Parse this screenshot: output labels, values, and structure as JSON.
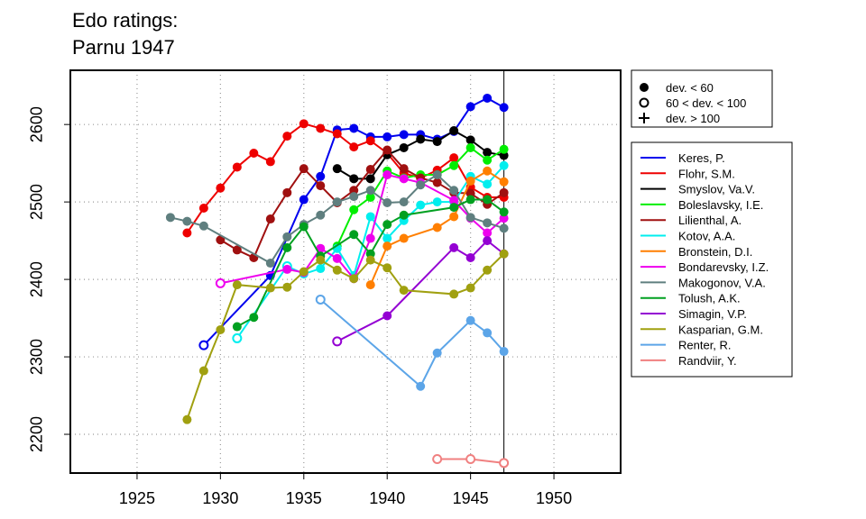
{
  "chart_data": {
    "type": "line",
    "title": [
      "Edo ratings:",
      "Parnu 1947"
    ],
    "xlabel": "",
    "ylabel": "",
    "xlim": [
      1921,
      1954
    ],
    "ylim": [
      2150,
      2670
    ],
    "xticks": [
      1925,
      1930,
      1935,
      1940,
      1945,
      1950
    ],
    "yticks": [
      2200,
      2300,
      2400,
      2500,
      2600
    ],
    "grid": "dotted",
    "vline_x": 1947,
    "legend_markers": {
      "position": "top-right",
      "entries": [
        "dev. < 60",
        "60 < dev. < 100",
        "dev. > 100"
      ]
    },
    "legend_position": "right",
    "series": [
      {
        "name": "Keres, P.",
        "color": "#0000ee",
        "points": [
          [
            1929,
            2315,
            "open"
          ],
          [
            1933,
            2405,
            "filled"
          ],
          [
            1935,
            2503,
            "filled"
          ],
          [
            1936,
            2533,
            "filled"
          ],
          [
            1937,
            2593,
            "filled"
          ],
          [
            1938,
            2595,
            "filled"
          ],
          [
            1939,
            2584,
            "filled"
          ],
          [
            1940,
            2584,
            "filled"
          ],
          [
            1941,
            2587,
            "filled"
          ],
          [
            1942,
            2587,
            "filled"
          ],
          [
            1943,
            2581,
            "filled"
          ],
          [
            1944,
            2591,
            "filled"
          ],
          [
            1945,
            2623,
            "filled"
          ],
          [
            1946,
            2634,
            "filled"
          ],
          [
            1947,
            2622,
            "filled"
          ]
        ]
      },
      {
        "name": "Flohr, S.M.",
        "color": "#ee0000",
        "points": [
          [
            1928,
            2460,
            "filled"
          ],
          [
            1929,
            2492,
            "filled"
          ],
          [
            1930,
            2518,
            "filled"
          ],
          [
            1931,
            2545,
            "filled"
          ],
          [
            1932,
            2563,
            "filled"
          ],
          [
            1933,
            2552,
            "filled"
          ],
          [
            1934,
            2585,
            "filled"
          ],
          [
            1935,
            2601,
            "filled"
          ],
          [
            1936,
            2595,
            "filled"
          ],
          [
            1937,
            2588,
            "filled"
          ],
          [
            1938,
            2571,
            "filled"
          ],
          [
            1939,
            2579,
            "filled"
          ],
          [
            1940,
            2563,
            "filled"
          ],
          [
            1941,
            2537,
            "filled"
          ],
          [
            1942,
            2531,
            "filled"
          ],
          [
            1943,
            2541,
            "filled"
          ],
          [
            1944,
            2557,
            "filled"
          ],
          [
            1945,
            2519,
            "filled"
          ],
          [
            1946,
            2506,
            "filled"
          ],
          [
            1947,
            2506,
            "filled"
          ]
        ]
      },
      {
        "name": "Smyslov, Va.V.",
        "color": "#000000",
        "points": [
          [
            1937,
            2543,
            "filled"
          ],
          [
            1938,
            2530,
            "filled"
          ],
          [
            1939,
            2530,
            "filled"
          ],
          [
            1940,
            2561,
            "filled"
          ],
          [
            1941,
            2570,
            "filled"
          ],
          [
            1942,
            2581,
            "filled"
          ],
          [
            1943,
            2578,
            "filled"
          ],
          [
            1944,
            2592,
            "filled"
          ],
          [
            1945,
            2580,
            "filled"
          ],
          [
            1946,
            2564,
            "filled"
          ],
          [
            1947,
            2560,
            "filled"
          ]
        ]
      },
      {
        "name": "Boleslavsky, I.E.",
        "color": "#00ee00",
        "points": [
          [
            1937,
            2443,
            "filled"
          ],
          [
            1938,
            2490,
            "filled"
          ],
          [
            1939,
            2506,
            "filled"
          ],
          [
            1940,
            2540,
            "filled"
          ],
          [
            1941,
            2531,
            "filled"
          ],
          [
            1942,
            2535,
            "filled"
          ],
          [
            1943,
            2535,
            "filled"
          ],
          [
            1944,
            2547,
            "filled"
          ],
          [
            1945,
            2570,
            "filled"
          ],
          [
            1946,
            2554,
            "filled"
          ],
          [
            1947,
            2568,
            "filled"
          ]
        ]
      },
      {
        "name": "Lilienthal, A.",
        "color": "#a01010",
        "points": [
          [
            1930,
            2451,
            "filled"
          ],
          [
            1931,
            2438,
            "filled"
          ],
          [
            1932,
            2428,
            "filled"
          ],
          [
            1933,
            2478,
            "filled"
          ],
          [
            1934,
            2512,
            "filled"
          ],
          [
            1935,
            2543,
            "filled"
          ],
          [
            1936,
            2521,
            "filled"
          ],
          [
            1937,
            2499,
            "filled"
          ],
          [
            1938,
            2515,
            "filled"
          ],
          [
            1939,
            2542,
            "filled"
          ],
          [
            1940,
            2567,
            "filled"
          ],
          [
            1941,
            2543,
            "filled"
          ],
          [
            1942,
            2531,
            "filled"
          ],
          [
            1943,
            2525,
            "filled"
          ],
          [
            1944,
            2512,
            "filled"
          ],
          [
            1945,
            2511,
            "filled"
          ],
          [
            1946,
            2497,
            "filled"
          ],
          [
            1947,
            2512,
            "filled"
          ]
        ]
      },
      {
        "name": "Kotov, A.A.",
        "color": "#00eeee",
        "points": [
          [
            1931,
            2324,
            "open"
          ],
          [
            1934,
            2417,
            "open"
          ],
          [
            1935,
            2407,
            "filled"
          ],
          [
            1936,
            2414,
            "filled"
          ],
          [
            1937,
            2440,
            "filled"
          ],
          [
            1938,
            2405,
            "filled"
          ],
          [
            1939,
            2481,
            "filled"
          ],
          [
            1940,
            2453,
            "filled"
          ],
          [
            1941,
            2476,
            "filled"
          ],
          [
            1942,
            2496,
            "filled"
          ],
          [
            1943,
            2500,
            "filled"
          ],
          [
            1944,
            2500,
            "filled"
          ],
          [
            1945,
            2533,
            "filled"
          ],
          [
            1946,
            2523,
            "filled"
          ],
          [
            1947,
            2547,
            "filled"
          ]
        ]
      },
      {
        "name": "Bronstein, D.I.",
        "color": "#ff7f00",
        "points": [
          [
            1939,
            2393,
            "filled"
          ],
          [
            1940,
            2443,
            "filled"
          ],
          [
            1941,
            2453,
            "filled"
          ],
          [
            1943,
            2467,
            "filled"
          ],
          [
            1944,
            2481,
            "filled"
          ],
          [
            1945,
            2527,
            "filled"
          ],
          [
            1946,
            2540,
            "filled"
          ],
          [
            1947,
            2526,
            "filled"
          ]
        ]
      },
      {
        "name": "Bondarevsky, I.Z.",
        "color": "#ee00ee",
        "points": [
          [
            1930,
            2395,
            "open"
          ],
          [
            1934,
            2413,
            "filled"
          ],
          [
            1935,
            2409,
            "filled"
          ],
          [
            1936,
            2440,
            "filled"
          ],
          [
            1937,
            2427,
            "filled"
          ],
          [
            1938,
            2401,
            "filled"
          ],
          [
            1939,
            2453,
            "filled"
          ],
          [
            1940,
            2535,
            "filled"
          ],
          [
            1941,
            2530,
            "filled"
          ],
          [
            1942,
            2525,
            "filled"
          ],
          [
            1944,
            2502,
            "filled"
          ],
          [
            1945,
            2479,
            "filled"
          ],
          [
            1946,
            2460,
            "filled"
          ],
          [
            1947,
            2479,
            "filled"
          ]
        ]
      },
      {
        "name": "Makogonov, V.A.",
        "color": "#5f7f7f",
        "points": [
          [
            1927,
            2480,
            "filled"
          ],
          [
            1928,
            2475,
            "filled"
          ],
          [
            1929,
            2469,
            "filled"
          ],
          [
            1933,
            2421,
            "filled"
          ],
          [
            1934,
            2455,
            "filled"
          ],
          [
            1935,
            2471,
            "filled"
          ],
          [
            1936,
            2483,
            "filled"
          ],
          [
            1937,
            2500,
            "filled"
          ],
          [
            1938,
            2507,
            "filled"
          ],
          [
            1939,
            2515,
            "filled"
          ],
          [
            1940,
            2499,
            "filled"
          ],
          [
            1941,
            2500,
            "filled"
          ],
          [
            1942,
            2522,
            "filled"
          ],
          [
            1943,
            2535,
            "filled"
          ],
          [
            1944,
            2515,
            "filled"
          ],
          [
            1945,
            2480,
            "filled"
          ],
          [
            1946,
            2473,
            "filled"
          ],
          [
            1947,
            2466,
            "filled"
          ]
        ]
      },
      {
        "name": "Tolush, A.K.",
        "color": "#00a020",
        "points": [
          [
            1931,
            2339,
            "filled"
          ],
          [
            1932,
            2351,
            "filled"
          ],
          [
            1934,
            2441,
            "filled"
          ],
          [
            1935,
            2468,
            "filled"
          ],
          [
            1936,
            2430,
            "filled"
          ],
          [
            1938,
            2458,
            "filled"
          ],
          [
            1939,
            2433,
            "filled"
          ],
          [
            1940,
            2471,
            "filled"
          ],
          [
            1941,
            2483,
            "filled"
          ],
          [
            1944,
            2493,
            "filled"
          ],
          [
            1945,
            2503,
            "filled"
          ],
          [
            1946,
            2503,
            "filled"
          ],
          [
            1947,
            2487,
            "filled"
          ]
        ]
      },
      {
        "name": "Simagin, V.P.",
        "color": "#9400d3",
        "points": [
          [
            1937,
            2320,
            "open"
          ],
          [
            1940,
            2353,
            "filled"
          ],
          [
            1944,
            2441,
            "filled"
          ],
          [
            1945,
            2428,
            "filled"
          ],
          [
            1946,
            2450,
            "filled"
          ],
          [
            1947,
            2433,
            "filled"
          ]
        ]
      },
      {
        "name": "Kasparian, G.M.",
        "color": "#a0a010",
        "points": [
          [
            1928,
            2219,
            "filled"
          ],
          [
            1929,
            2282,
            "filled"
          ],
          [
            1930,
            2335,
            "filled"
          ],
          [
            1931,
            2393,
            "filled"
          ],
          [
            1933,
            2389,
            "filled"
          ],
          [
            1934,
            2390,
            "filled"
          ],
          [
            1935,
            2410,
            "filled"
          ],
          [
            1936,
            2425,
            "filled"
          ],
          [
            1937,
            2412,
            "filled"
          ],
          [
            1938,
            2401,
            "filled"
          ],
          [
            1939,
            2425,
            "filled"
          ],
          [
            1940,
            2415,
            "filled"
          ],
          [
            1941,
            2386,
            "filled"
          ],
          [
            1944,
            2381,
            "filled"
          ],
          [
            1945,
            2389,
            "filled"
          ],
          [
            1946,
            2412,
            "filled"
          ],
          [
            1947,
            2433,
            "filled"
          ]
        ]
      },
      {
        "name": "Renter, R.",
        "color": "#5ca5e8",
        "points": [
          [
            1936,
            2374,
            "open"
          ],
          [
            1942,
            2262,
            "filled"
          ],
          [
            1943,
            2305,
            "filled"
          ],
          [
            1945,
            2347,
            "filled"
          ],
          [
            1946,
            2331,
            "filled"
          ],
          [
            1947,
            2307,
            "filled"
          ]
        ]
      },
      {
        "name": "Randviir, Y.",
        "color": "#f08080",
        "points": [
          [
            1943,
            2168,
            "open"
          ],
          [
            1945,
            2168,
            "open"
          ],
          [
            1947,
            2163,
            "open"
          ]
        ]
      }
    ]
  }
}
